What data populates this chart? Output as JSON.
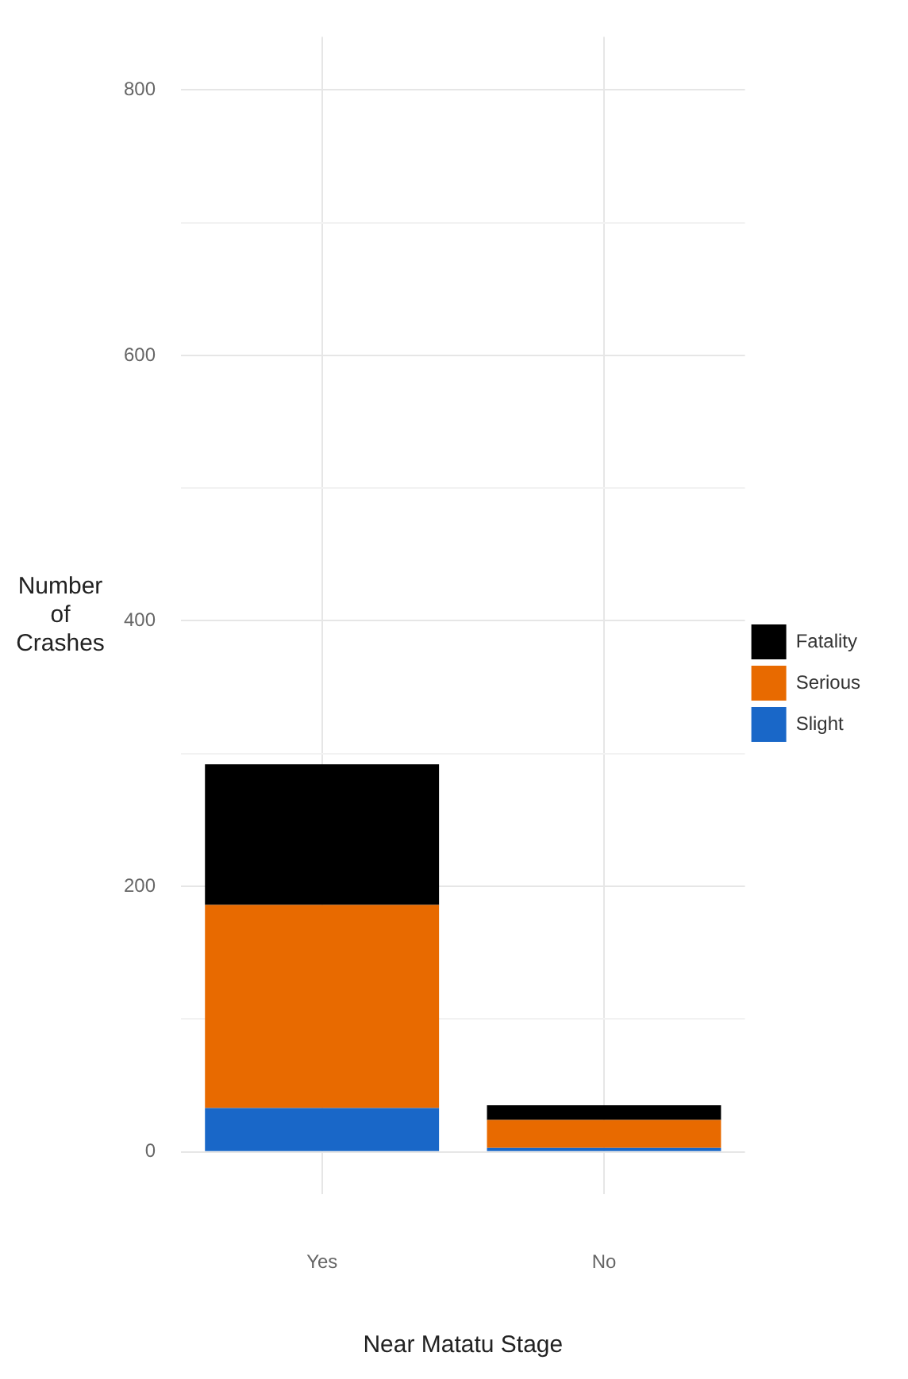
{
  "chart_data": {
    "type": "bar",
    "stacked": true,
    "xlabel": "Near Matatu Stage",
    "ylabel": "Number of Crashes",
    "categories": [
      "Yes",
      "No"
    ],
    "series": [
      {
        "name": "Slight",
        "color": "#1967c8",
        "values": [
          33,
          3
        ]
      },
      {
        "name": "Serious",
        "color": "#e86a00",
        "values": [
          153,
          21
        ]
      },
      {
        "name": "Fatality",
        "color": "#000000",
        "values": [
          106,
          11
        ]
      }
    ],
    "ylim": [
      -32,
      840
    ],
    "yticks": [
      0,
      {
        "value": 100,
        "label": null
      },
      200,
      {
        "value": 300,
        "label": null
      },
      400,
      {
        "value": 500,
        "label": null
      },
      600,
      {
        "value": 700,
        "label": null
      },
      800
    ],
    "grid": true,
    "legend": "right"
  }
}
